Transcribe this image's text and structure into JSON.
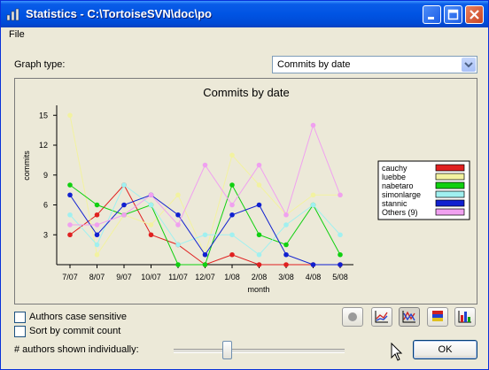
{
  "window": {
    "title": "Statistics - C:\\TortoiseSVN\\doc\\po"
  },
  "menu": {
    "file": "File"
  },
  "graph_type": {
    "label": "Graph type:",
    "value": "Commits by date"
  },
  "options": {
    "authors_case_sensitive": "Authors case sensitive",
    "sort_by_commit_count": "Sort by commit count",
    "authors_shown_individually": "# authors shown individually:"
  },
  "slider": {
    "value_fraction": 0.28
  },
  "ok_label": "OK",
  "icons": [
    "window-app-icon",
    "minimize-icon",
    "maximize-icon",
    "close-icon",
    "dropdown-arrow-icon",
    "percentage-stacked-graph-icon",
    "line-graph-icon",
    "stacked-line-graph-icon",
    "stacked-bar-graph-icon",
    "bar-graph-icon",
    "mouse-cursor-icon"
  ],
  "chart_data": {
    "type": "line",
    "title": "Commits by date",
    "xlabel": "month",
    "ylabel": "commits",
    "categories": [
      "7/07",
      "8/07",
      "9/07",
      "10/07",
      "11/07",
      "12/07",
      "1/08",
      "2/08",
      "3/08",
      "4/08",
      "5/08"
    ],
    "ylim": [
      0,
      16
    ],
    "yticks": [
      3,
      6,
      9,
      12,
      15
    ],
    "legend_position": "right",
    "series": [
      {
        "name": "cauchy",
        "color": "#e02020",
        "values": [
          3,
          5,
          8,
          3,
          2,
          0,
          1,
          0,
          0,
          0,
          0
        ]
      },
      {
        "name": "luebbe",
        "color": "#f2f2a0",
        "values": [
          15,
          1,
          5,
          4,
          7,
          1,
          11,
          8,
          5,
          7,
          7
        ]
      },
      {
        "name": "nabetaro",
        "color": "#10d010",
        "values": [
          8,
          6,
          5,
          6,
          0,
          0,
          8,
          3,
          2,
          6,
          1
        ]
      },
      {
        "name": "simonlarge",
        "color": "#a0f0f0",
        "values": [
          5,
          2,
          8,
          6,
          2,
          3,
          3,
          1,
          4,
          6,
          3
        ]
      },
      {
        "name": "stannic",
        "color": "#1020d0",
        "values": [
          7,
          3,
          6,
          7,
          5,
          1,
          5,
          6,
          1,
          0,
          0
        ]
      },
      {
        "name": "Others (9)",
        "color": "#f0a0f0",
        "values": [
          4,
          4,
          5,
          7,
          4,
          10,
          6,
          10,
          5,
          14,
          7
        ]
      }
    ]
  }
}
